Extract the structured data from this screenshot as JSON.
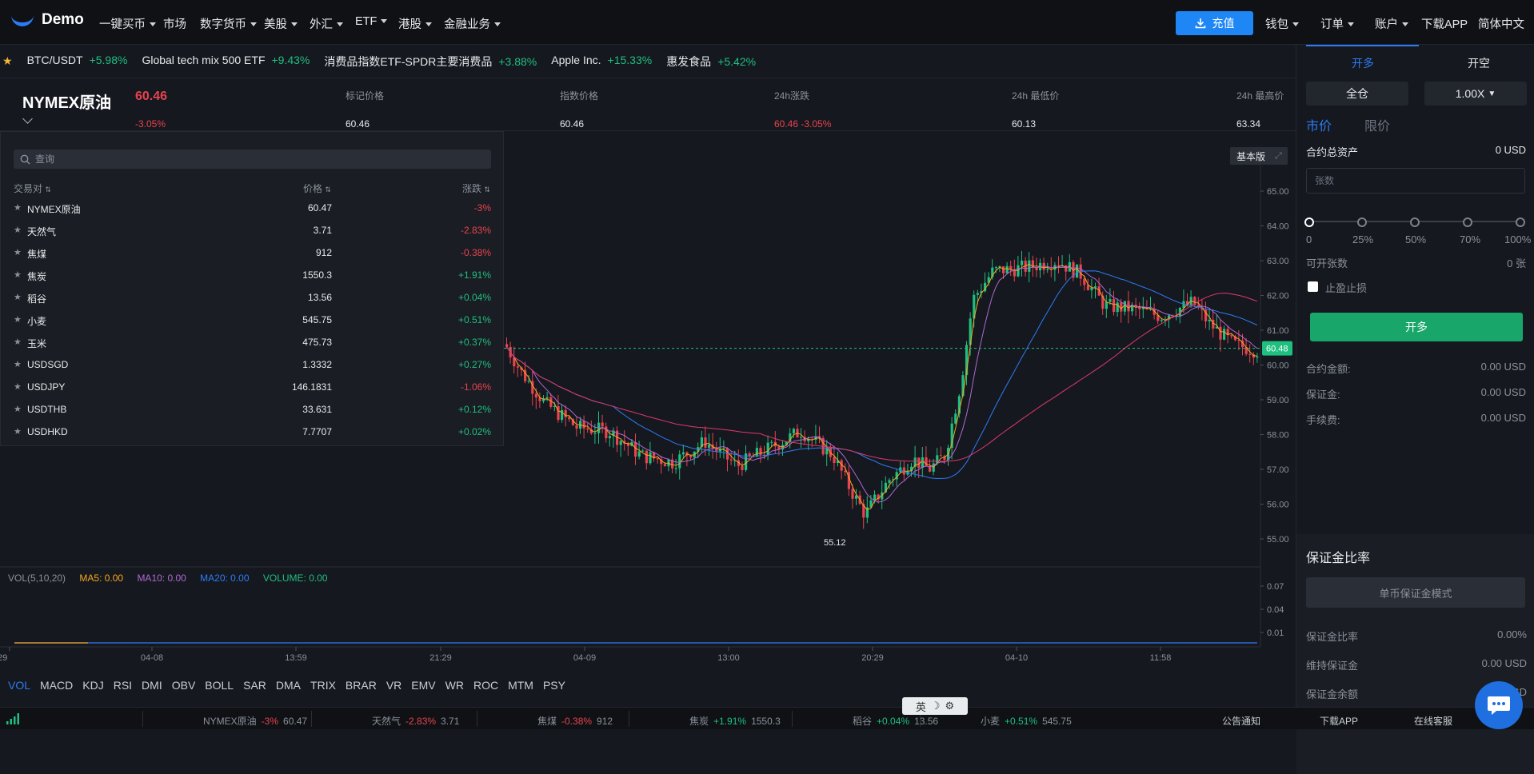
{
  "app": {
    "name": "Demo"
  },
  "nav": {
    "items": [
      {
        "label": "一键买币",
        "dropdown": true
      },
      {
        "label": "市场",
        "dropdown": false
      },
      {
        "label": "数字货币",
        "dropdown": true
      },
      {
        "label": "美股",
        "dropdown": true
      },
      {
        "label": "外汇",
        "dropdown": true
      },
      {
        "label": "ETF",
        "dropdown": true
      },
      {
        "label": "港股",
        "dropdown": true
      },
      {
        "label": "金融业务",
        "dropdown": true
      }
    ],
    "recharge_label": "充值",
    "right_items": [
      {
        "label": "钱包",
        "dropdown": true
      },
      {
        "label": "订单",
        "dropdown": true
      },
      {
        "label": "账户",
        "dropdown": true
      },
      {
        "label": "下载APP",
        "dropdown": false
      },
      {
        "label": "简体中文",
        "dropdown": false
      }
    ]
  },
  "ticker": [
    {
      "name": "BTC/USDT",
      "change": "+5.98%"
    },
    {
      "name": "Global tech mix 500 ETF",
      "change": "+9.43%"
    },
    {
      "name": "消费品指数ETF-SPDR主要消费品",
      "change": "+3.88%"
    },
    {
      "name": "Apple Inc.",
      "change": "+15.33%"
    },
    {
      "name": "惠发食品",
      "change": "+5.42%"
    }
  ],
  "symbol": {
    "name": "NYMEX原油",
    "price": "60.46",
    "change": "-3.05%",
    "stats": [
      {
        "label": "标记价格",
        "value": "60.46"
      },
      {
        "label": "指数价格",
        "value": "60.46"
      },
      {
        "label": "24h涨跌",
        "value": "60.46  -3.05%"
      },
      {
        "label": "24h 最低价",
        "value": "60.13"
      },
      {
        "label": "24h 最高价",
        "value": "63.34"
      }
    ]
  },
  "dropdown": {
    "search_placeholder": "查询",
    "headers": {
      "pair": "交易对",
      "price": "价格",
      "change": "涨跌"
    },
    "rows": [
      {
        "name": "NYMEX原油",
        "price": "60.47",
        "change": "-3%"
      },
      {
        "name": "天然气",
        "price": "3.71",
        "change": "-2.83%"
      },
      {
        "name": "焦煤",
        "price": "912",
        "change": "-0.38%"
      },
      {
        "name": "焦炭",
        "price": "1550.3",
        "change": "+1.91%"
      },
      {
        "name": "稻谷",
        "price": "13.56",
        "change": "+0.04%"
      },
      {
        "name": "小麦",
        "price": "545.75",
        "change": "+0.51%"
      },
      {
        "name": "玉米",
        "price": "475.73",
        "change": "+0.37%"
      },
      {
        "name": "USDSGD",
        "price": "1.3332",
        "change": "+0.27%"
      },
      {
        "name": "USDJPY",
        "price": "146.1831",
        "change": "-1.06%"
      },
      {
        "name": "USDTHB",
        "price": "33.631",
        "change": "+0.12%"
      },
      {
        "name": "USDHKD",
        "price": "7.7707",
        "change": "+0.02%"
      }
    ]
  },
  "chart": {
    "mode_label": "基本版",
    "last_price_label": "60.48",
    "low_marker": "55.12",
    "indicator_legend": {
      "vol": "VOL(5,10,20)",
      "ma5": "MA5: 0.00",
      "ma10": "MA10: 0.00",
      "ma20": "MA20: 0.00",
      "volume": "VOLUME: 0.00"
    },
    "indicator_tabs": [
      "VOL",
      "MACD",
      "KDJ",
      "RSI",
      "DMI",
      "OBV",
      "BOLL",
      "SAR",
      "DMA",
      "TRIX",
      "BRAR",
      "VR",
      "EMV",
      "WR",
      "ROC",
      "MTM",
      "PSY"
    ],
    "active_indicator": "VOL",
    "price_axis": [
      "65.00",
      "64.00",
      "63.00",
      "62.00",
      "61.00",
      "60.00",
      "59.00",
      "58.00",
      "57.00",
      "56.00",
      "55.00"
    ],
    "vol_axis": [
      "0.07",
      "0.04",
      "0.01"
    ],
    "time_axis": [
      ":29",
      "04-08",
      "13:59",
      "21:29",
      "04-09",
      "13:00",
      "20:29",
      "04-10",
      "11:58"
    ],
    "colors": {
      "up": "#1fbf80",
      "down": "#e8434f",
      "ma5": "#f5a623",
      "ma10": "#b069d6",
      "ma20": "#2d7cf6",
      "ma60": "#e0386c",
      "accent": "#1f86f5"
    }
  },
  "panel": {
    "tab_long": "开多",
    "tab_short": "开空",
    "margin_mode": "全仓",
    "leverage": "1.00X",
    "order_type_market": "市价",
    "order_type_limit": "限价",
    "total_assets_label": "合约总资产",
    "total_assets_value": "0 USD",
    "qty_placeholder": "张数",
    "slider_marks": [
      "0",
      "25%",
      "50%",
      "70%",
      "100%"
    ],
    "openable_label": "可开张数",
    "openable_value": "0 张",
    "tp_sl_label": "止盈止损",
    "open_button": "开多",
    "contract_amount_label": "合约金额:",
    "contract_amount_value": "0.00 USD",
    "margin_label": "保证金:",
    "margin_value": "0.00 USD",
    "fee_label": "手续费:",
    "fee_value": "0.00 USD",
    "margin_ratio_title": "保证金比率",
    "single_margin_mode": "单币保证金模式",
    "margin_ratio_label": "保证金比率",
    "margin_ratio_value": "0.00%",
    "maint_margin_label": "维持保证金",
    "maint_margin_value": "0.00 USD",
    "margin_balance_label": "保证金余额",
    "margin_balance_value": "0.00 USD"
  },
  "footer": {
    "items": [
      {
        "name": "NYMEX原油",
        "change": "-3%",
        "price": "60.47"
      },
      {
        "name": "天然气",
        "change": "-2.83%",
        "price": "3.71"
      },
      {
        "name": "焦煤",
        "change": "-0.38%",
        "price": "912"
      },
      {
        "name": "焦炭",
        "change": "+1.91%",
        "price": "1550.3"
      },
      {
        "name": "稻谷",
        "change": "+0.04%",
        "price": "13.56"
      },
      {
        "name": "小麦",
        "change": "+0.51%",
        "price": "545.75"
      }
    ],
    "notice": "公告通知",
    "download": "下载APP",
    "support": "在线客服"
  },
  "ime": {
    "lang": "英"
  }
}
